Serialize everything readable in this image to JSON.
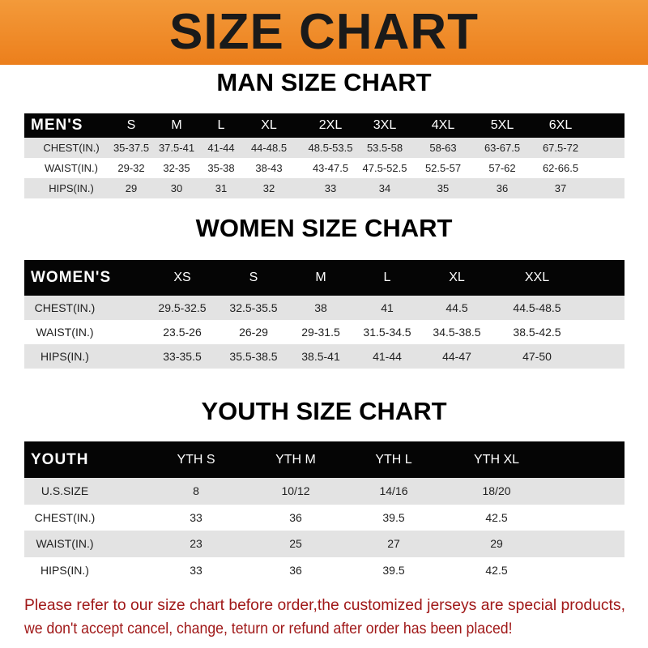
{
  "banner": {
    "title": "SIZE CHART",
    "color": "#ee8a28"
  },
  "tables": [
    {
      "title": "MAN SIZE CHART",
      "header_label": "MEN'S",
      "columns": [
        "S",
        "M",
        "L",
        "XL",
        "2XL",
        "3XL",
        "4XL",
        "5XL",
        "6XL"
      ],
      "rows": [
        {
          "label": "CHEST(IN.)",
          "values": [
            "35-37.5",
            "37.5-41",
            "41-44",
            "44-48.5",
            "48.5-53.5",
            "53.5-58",
            "58-63",
            "63-67.5",
            "67.5-72"
          ]
        },
        {
          "label": "WAIST(IN.)",
          "values": [
            "29-32",
            "32-35",
            "35-38",
            "38-43",
            "43-47.5",
            "47.5-52.5",
            "52.5-57",
            "57-62",
            "62-66.5"
          ]
        },
        {
          "label": "HIPS(IN.)",
          "values": [
            "29",
            "30",
            "31",
            "32",
            "33",
            "34",
            "35",
            "36",
            "37"
          ]
        }
      ]
    },
    {
      "title": "WOMEN SIZE CHART",
      "header_label": "WOMEN'S",
      "columns": [
        "XS",
        "S",
        "M",
        "L",
        "XL",
        "XXL"
      ],
      "rows": [
        {
          "label": "CHEST(IN.)",
          "values": [
            "29.5-32.5",
            "32.5-35.5",
            "38",
            "41",
            "44.5",
            "44.5-48.5"
          ]
        },
        {
          "label": "WAIST(IN.)",
          "values": [
            "23.5-26",
            "26-29",
            "29-31.5",
            "31.5-34.5",
            "34.5-38.5",
            "38.5-42.5"
          ]
        },
        {
          "label": "HIPS(IN.)",
          "values": [
            "33-35.5",
            "35.5-38.5",
            "38.5-41",
            "41-44",
            "44-47",
            "47-50"
          ]
        }
      ]
    },
    {
      "title": "YOUTH SIZE CHART",
      "header_label": "YOUTH",
      "columns": [
        "YTH S",
        "YTH M",
        "YTH L",
        "YTH XL"
      ],
      "rows": [
        {
          "label": "U.S.SIZE",
          "values": [
            "8",
            "10/12",
            "14/16",
            "18/20"
          ]
        },
        {
          "label": "CHEST(IN.)",
          "values": [
            "33",
            "36",
            "39.5",
            "42.5"
          ]
        },
        {
          "label": "WAIST(IN.)",
          "values": [
            "23",
            "25",
            "27",
            "29"
          ]
        },
        {
          "label": "HIPS(IN.)",
          "values": [
            "33",
            "36",
            "39.5",
            "42.5"
          ]
        }
      ]
    }
  ],
  "notice": {
    "lines": [
      "Please refer to our size chart before order,the customized jerseys are special products,",
      "we don't accept cancel, change, teturn or refund after order has been placed!"
    ],
    "color": "#a01818"
  }
}
